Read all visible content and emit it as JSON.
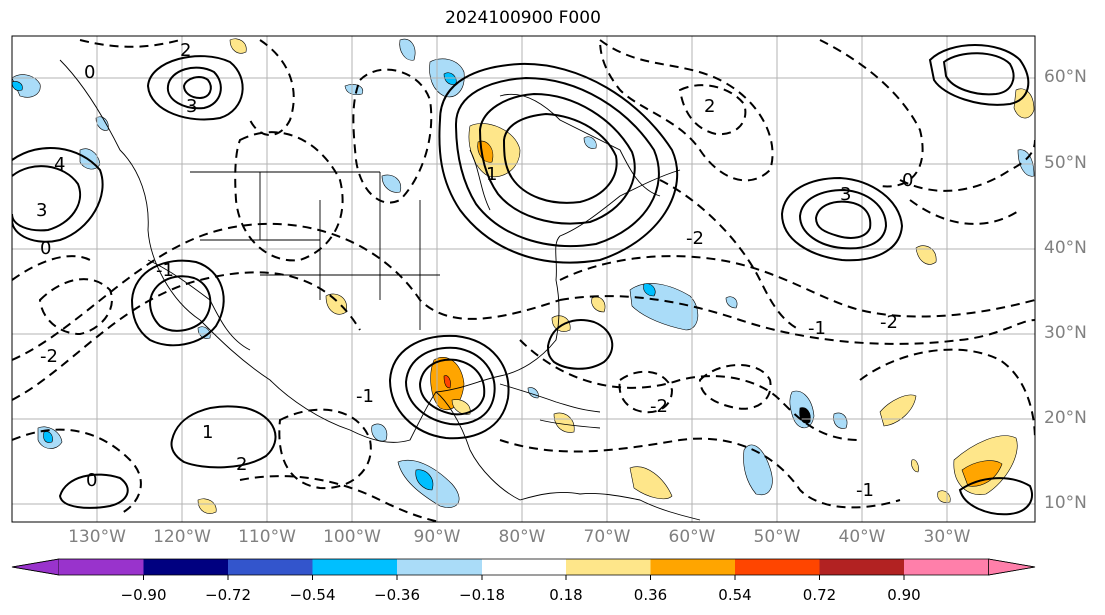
{
  "title": "2024100900 F000",
  "lat_labels": [
    "60°N",
    "50°N",
    "40°N",
    "30°N",
    "20°N",
    "10°N"
  ],
  "lon_labels": [
    "130°W",
    "120°W",
    "110°W",
    "100°W",
    "90°W",
    "80°W",
    "70°W",
    "60°W",
    "50°W",
    "40°W",
    "30°W"
  ],
  "colorbar": {
    "ticks": [
      "−0.90",
      "−0.72",
      "−0.54",
      "−0.36",
      "−0.18",
      "0.18",
      "0.36",
      "0.54",
      "0.72",
      "0.90"
    ],
    "colors": [
      "#9933cc",
      "#000080",
      "#3355cc",
      "#00bfff",
      "#aadcf8",
      "#ffffff",
      "#fee68a",
      "#ffa500",
      "#ff4500",
      "#b22222",
      "#ff7faa"
    ]
  },
  "contour_labels": [
    "0",
    "2",
    "3",
    "4",
    "3",
    "0",
    "-1",
    "-2",
    "1",
    "2",
    "0",
    "3",
    "2",
    "-2",
    "-1",
    "0",
    "1",
    "-1",
    "-2",
    "-1",
    "-2"
  ],
  "map_extent": {
    "lon": [
      -138,
      -20
    ],
    "lat": [
      7,
      65
    ]
  }
}
